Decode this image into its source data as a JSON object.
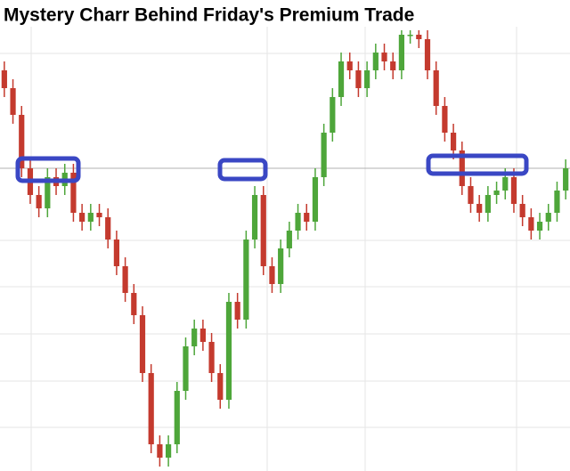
{
  "chart_data": {
    "type": "candlestick",
    "title": "Mystery Charr Behind Friday's Premium Trade",
    "open": [
      90,
      86,
      80,
      68,
      62,
      59,
      66,
      64,
      67,
      58,
      56,
      58,
      57,
      52,
      46,
      40,
      35,
      22,
      6,
      3,
      6,
      18,
      28,
      32,
      29,
      22,
      16,
      38,
      34,
      52,
      62,
      46,
      42,
      50,
      54,
      58,
      56,
      66,
      76,
      84,
      92,
      90,
      86,
      90,
      94,
      92,
      90,
      98,
      98,
      97,
      90,
      82,
      76,
      72,
      64,
      60,
      58,
      62,
      63,
      66,
      60,
      57,
      54,
      56,
      58,
      63
    ],
    "high": [
      92,
      88,
      82,
      70,
      64,
      68,
      68,
      69,
      69,
      60,
      60,
      60,
      59,
      54,
      48,
      42,
      37,
      24,
      8,
      8,
      20,
      30,
      34,
      34,
      31,
      24,
      40,
      40,
      54,
      64,
      64,
      48,
      52,
      56,
      60,
      60,
      68,
      78,
      86,
      94,
      94,
      92,
      92,
      96,
      96,
      94,
      99,
      99,
      99,
      99,
      92,
      84,
      78,
      74,
      66,
      62,
      64,
      65,
      68,
      68,
      62,
      59,
      58,
      60,
      65,
      70
    ],
    "low": [
      84,
      78,
      66,
      60,
      57,
      57,
      62,
      62,
      56,
      54,
      54,
      55,
      50,
      44,
      38,
      33,
      20,
      4,
      1,
      1,
      4,
      16,
      26,
      27,
      20,
      14,
      14,
      32,
      32,
      50,
      44,
      40,
      40,
      48,
      52,
      54,
      54,
      64,
      74,
      82,
      88,
      84,
      84,
      88,
      90,
      88,
      88,
      96,
      95,
      88,
      80,
      74,
      70,
      62,
      58,
      56,
      56,
      60,
      61,
      58,
      55,
      52,
      52,
      54,
      56,
      61
    ],
    "close": [
      86,
      80,
      68,
      62,
      59,
      66,
      64,
      67,
      58,
      56,
      58,
      57,
      52,
      46,
      40,
      35,
      22,
      6,
      3,
      6,
      18,
      28,
      32,
      29,
      22,
      16,
      38,
      34,
      52,
      62,
      46,
      42,
      50,
      54,
      58,
      56,
      66,
      76,
      84,
      92,
      90,
      86,
      90,
      94,
      92,
      90,
      98,
      98,
      97,
      90,
      82,
      76,
      72,
      64,
      60,
      58,
      62,
      63,
      66,
      60,
      57,
      54,
      56,
      58,
      63,
      68
    ],
    "up_color": "#4ea63a",
    "down_color": "#c43a2e",
    "ylim": [
      0,
      100
    ],
    "reference_line": 68
  }
}
